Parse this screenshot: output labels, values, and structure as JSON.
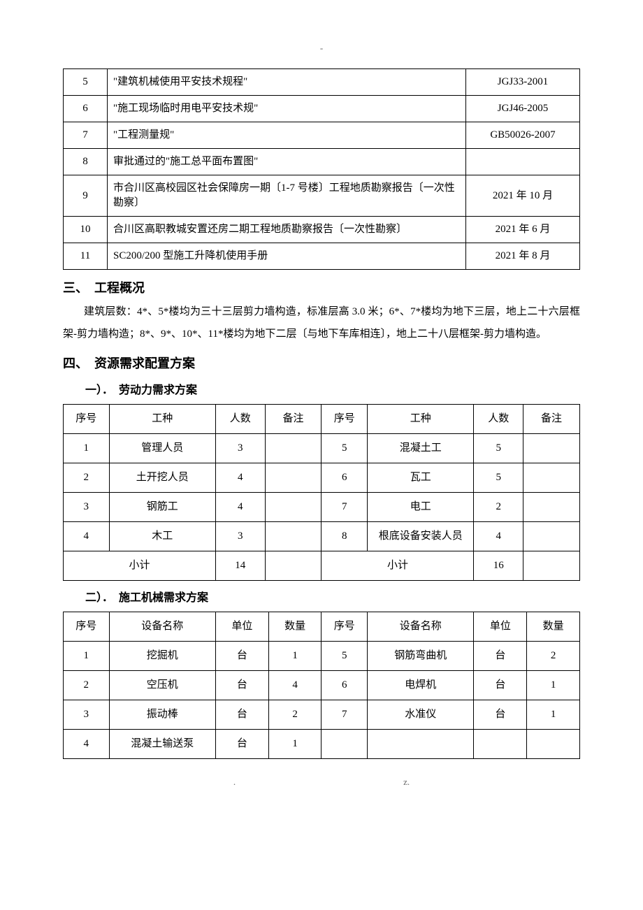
{
  "header_mark": "-",
  "refs": {
    "rows": [
      {
        "idx": "5",
        "name": "\"建筑机械使用平安技术规程\"",
        "code": "JGJ33-2001"
      },
      {
        "idx": "6",
        "name": "\"施工现场临时用电平安技术规\"",
        "code": "JGJ46-2005"
      },
      {
        "idx": "7",
        "name": "\"工程测量规\"",
        "code": "GB50026-2007"
      },
      {
        "idx": "8",
        "name": "审批通过的\"施工总平面布置图\"",
        "code": ""
      },
      {
        "idx": "9",
        "name": "市合川区高校园区社会保障房一期〔1-7 号楼〕工程地质勘察报告〔一次性勘察〕",
        "code": "2021 年 10 月"
      },
      {
        "idx": "10",
        "name": "合川区高职教城安置还房二期工程地质勘察报告〔一次性勘察〕",
        "code": "2021 年 6 月"
      },
      {
        "idx": "11",
        "name": "SC200/200 型施工升降机使用手册",
        "code": "2021 年 8 月"
      }
    ]
  },
  "section3": {
    "title": "三、　工程概况",
    "body": "建筑层数：4*、5*楼均为三十三层剪力墙构造，标准层高 3.0 米；6*、7*楼均为地下三层，地上二十六层框架-剪力墙构造；8*、9*、10*、11*楼均为地下二层〔与地下车库相连〕，地上二十八层框架-剪力墙构造。"
  },
  "section4": {
    "title": "四、　资源需求配置方案",
    "sub1": {
      "title": "一）．　劳动力需求方案",
      "headers": {
        "idx": "序号",
        "type": "工种",
        "count": "人数",
        "note": "备注"
      },
      "left": [
        {
          "idx": "1",
          "type": "管理人员",
          "count": "3",
          "note": ""
        },
        {
          "idx": "2",
          "type": "土开挖人员",
          "count": "4",
          "note": ""
        },
        {
          "idx": "3",
          "type": "钢筋工",
          "count": "4",
          "note": ""
        },
        {
          "idx": "4",
          "type": "木工",
          "count": "3",
          "note": ""
        }
      ],
      "right": [
        {
          "idx": "5",
          "type": "混凝土工",
          "count": "5",
          "note": ""
        },
        {
          "idx": "6",
          "type": "瓦工",
          "count": "5",
          "note": ""
        },
        {
          "idx": "7",
          "type": "电工",
          "count": "2",
          "note": ""
        },
        {
          "idx": "8",
          "type": "根底设备安装人员",
          "count": "4",
          "note": ""
        }
      ],
      "subtotal_label": "小计",
      "subtotal_left": "14",
      "subtotal_right": "16"
    },
    "sub2": {
      "title": "二）．　施工机械需求方案",
      "headers": {
        "idx": "序号",
        "name": "设备名称",
        "unit": "单位",
        "qty": "数量"
      },
      "left": [
        {
          "idx": "1",
          "name": "挖掘机",
          "unit": "台",
          "qty": "1"
        },
        {
          "idx": "2",
          "name": "空压机",
          "unit": "台",
          "qty": "4"
        },
        {
          "idx": "3",
          "name": "振动棒",
          "unit": "台",
          "qty": "2"
        },
        {
          "idx": "4",
          "name": "混凝土输送泵",
          "unit": "台",
          "qty": "1"
        }
      ],
      "right": [
        {
          "idx": "5",
          "name": "钢筋弯曲机",
          "unit": "台",
          "qty": "2"
        },
        {
          "idx": "6",
          "name": "电焊机",
          "unit": "台",
          "qty": "1"
        },
        {
          "idx": "7",
          "name": "水准仪",
          "unit": "台",
          "qty": "1"
        },
        {
          "idx": "",
          "name": "",
          "unit": "",
          "qty": ""
        }
      ]
    }
  },
  "footer": {
    "left": ".",
    "right": "z."
  },
  "table_style": {
    "border_color": "#000000",
    "border_width": 1,
    "cell_padding": 8,
    "font_size": 15,
    "text_color": "#000000",
    "background": "#ffffff"
  },
  "col_widths": {
    "refs": {
      "idx": 50,
      "code": 150
    },
    "labor": {
      "idx": 55,
      "type": 140,
      "count": 60,
      "note": 70
    },
    "mach": {
      "idx": 55,
      "name": 140,
      "unit": 65,
      "qty": 65
    }
  }
}
